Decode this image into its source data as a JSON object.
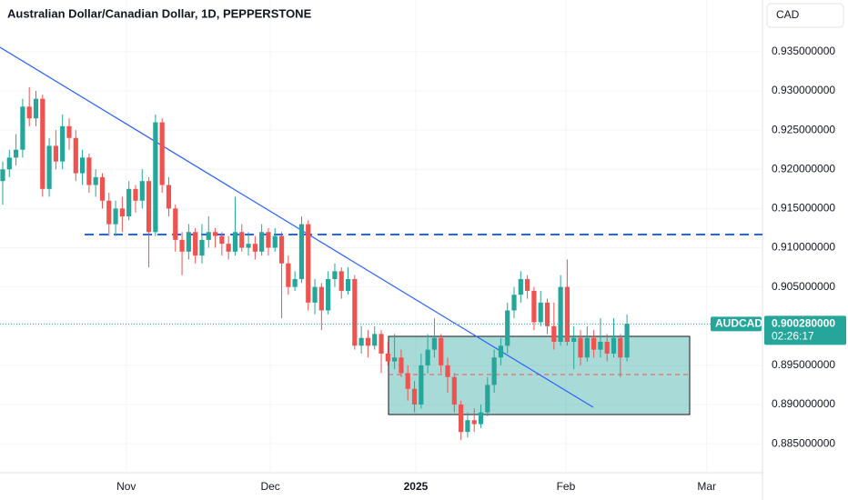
{
  "chart_data": {
    "type": "candlestick",
    "title": "Australian Dollar/Canadian Dollar, 1D, PEPPERSTONE",
    "currency": "CAD",
    "symbol": "AUDCAD",
    "last_price": {
      "value": 0.90028,
      "label": "0.900280000"
    },
    "countdown": "02:26:17",
    "up_color": "#26a69a",
    "down_color": "#ef5350",
    "xlim": [
      -0.41,
      114.4
    ],
    "ylim": [
      0.8813,
      0.9416
    ],
    "xticks": [
      {
        "value": 18.6,
        "label": "Nov"
      },
      {
        "value": 40.3,
        "label": "Dec"
      },
      {
        "value": 62.2,
        "label": "2025"
      },
      {
        "value": 84.8,
        "label": "Feb"
      },
      {
        "value": 106,
        "label": "Mar"
      }
    ],
    "yticks": [
      {
        "value": 0.885,
        "label": "0.885000000"
      },
      {
        "value": 0.89,
        "label": "0.890000000"
      },
      {
        "value": 0.895,
        "label": "0.895000000"
      },
      {
        "value": 0.905,
        "label": "0.905000000"
      },
      {
        "value": 0.91,
        "label": "0.910000000"
      },
      {
        "value": 0.915,
        "label": "0.915000000"
      },
      {
        "value": 0.92,
        "label": "0.920000000"
      },
      {
        "value": 0.925,
        "label": "0.925000000"
      },
      {
        "value": 0.93,
        "label": "0.930000000"
      },
      {
        "value": 0.935,
        "label": "0.935000000"
      }
    ],
    "open": [
      0.9185,
      0.92,
      0.9215,
      0.9225,
      0.928,
      0.9265,
      0.929,
      0.9175,
      0.923,
      0.921,
      0.9255,
      0.924,
      0.9195,
      0.9215,
      0.918,
      0.919,
      0.916,
      0.913,
      0.915,
      0.914,
      0.9175,
      0.916,
      0.9185,
      0.912,
      0.926,
      0.918,
      0.915,
      0.911,
      0.9095,
      0.912,
      0.909,
      0.911,
      0.912,
      0.9115,
      0.9105,
      0.9095,
      0.912,
      0.91,
      0.9105,
      0.9095,
      0.912,
      0.91,
      0.9115,
      0.908,
      0.905,
      0.906,
      0.913,
      0.903,
      0.905,
      0.902,
      0.906,
      0.907,
      0.9045,
      0.906,
      0.8975,
      0.8985,
      0.8975,
      0.899,
      0.8965,
      0.8955,
      0.896,
      0.894,
      0.892,
      0.89,
      0.895,
      0.897,
      0.8985,
      0.895,
      0.8935,
      0.89,
      0.8865,
      0.888,
      0.8875,
      0.889,
      0.8925,
      0.896,
      0.8975,
      0.902,
      0.904,
      0.906,
      0.9045,
      0.9005,
      0.903,
      0.9,
      0.898,
      0.905,
      0.898,
      0.8985,
      0.896,
      0.8985,
      0.897,
      0.898,
      0.8965,
      0.8985,
      0.896
    ],
    "high": [
      0.921,
      0.9225,
      0.9245,
      0.929,
      0.9305,
      0.93,
      0.9295,
      0.924,
      0.925,
      0.927,
      0.9265,
      0.925,
      0.9225,
      0.922,
      0.92,
      0.9195,
      0.917,
      0.916,
      0.9165,
      0.9185,
      0.918,
      0.92,
      0.919,
      0.927,
      0.9265,
      0.919,
      0.9155,
      0.912,
      0.913,
      0.9125,
      0.913,
      0.914,
      0.9125,
      0.912,
      0.9115,
      0.9165,
      0.913,
      0.912,
      0.9115,
      0.913,
      0.9125,
      0.9125,
      0.912,
      0.909,
      0.907,
      0.914,
      0.9135,
      0.906,
      0.9055,
      0.907,
      0.908,
      0.9075,
      0.9075,
      0.9065,
      0.9,
      0.8995,
      0.9,
      0.8995,
      0.898,
      0.899,
      0.897,
      0.895,
      0.893,
      0.8965,
      0.899,
      0.901,
      0.899,
      0.896,
      0.894,
      0.8905,
      0.889,
      0.8895,
      0.89,
      0.8935,
      0.897,
      0.8985,
      0.903,
      0.905,
      0.907,
      0.9065,
      0.905,
      0.9045,
      0.9035,
      0.903,
      0.9065,
      0.9085,
      0.9,
      0.8995,
      0.9,
      0.8995,
      0.901,
      0.899,
      0.901,
      0.899,
      0.9015
    ],
    "low": [
      0.9155,
      0.919,
      0.9205,
      0.9215,
      0.9255,
      0.9255,
      0.9165,
      0.9165,
      0.92,
      0.92,
      0.9225,
      0.9185,
      0.918,
      0.917,
      0.9165,
      0.915,
      0.9115,
      0.9115,
      0.912,
      0.9135,
      0.9145,
      0.915,
      0.9075,
      0.9115,
      0.917,
      0.914,
      0.9095,
      0.9065,
      0.9085,
      0.908,
      0.908,
      0.91,
      0.91,
      0.909,
      0.9085,
      0.909,
      0.9095,
      0.909,
      0.9085,
      0.909,
      0.909,
      0.9095,
      0.901,
      0.904,
      0.9045,
      0.9055,
      0.902,
      0.9015,
      0.8995,
      0.9015,
      0.905,
      0.9035,
      0.904,
      0.897,
      0.8965,
      0.896,
      0.897,
      0.894,
      0.895,
      0.8945,
      0.8935,
      0.8905,
      0.889,
      0.8895,
      0.894,
      0.896,
      0.894,
      0.8915,
      0.889,
      0.8855,
      0.8858,
      0.8865,
      0.887,
      0.8885,
      0.8915,
      0.895,
      0.8965,
      0.901,
      0.903,
      0.9035,
      0.8995,
      0.9,
      0.899,
      0.897,
      0.8975,
      0.8975,
      0.8945,
      0.895,
      0.8955,
      0.896,
      0.896,
      0.8955,
      0.896,
      0.8935,
      0.8955
    ],
    "close": [
      0.92,
      0.9215,
      0.9225,
      0.928,
      0.9265,
      0.929,
      0.9175,
      0.923,
      0.921,
      0.9255,
      0.924,
      0.9195,
      0.9215,
      0.918,
      0.919,
      0.916,
      0.913,
      0.915,
      0.914,
      0.9175,
      0.916,
      0.9185,
      0.912,
      0.926,
      0.918,
      0.915,
      0.911,
      0.9095,
      0.912,
      0.909,
      0.911,
      0.912,
      0.9115,
      0.9105,
      0.9095,
      0.912,
      0.91,
      0.9105,
      0.9095,
      0.912,
      0.91,
      0.9115,
      0.908,
      0.905,
      0.906,
      0.913,
      0.903,
      0.905,
      0.902,
      0.906,
      0.907,
      0.9045,
      0.906,
      0.8975,
      0.8985,
      0.8975,
      0.899,
      0.8965,
      0.8955,
      0.896,
      0.894,
      0.892,
      0.89,
      0.895,
      0.897,
      0.8985,
      0.895,
      0.8935,
      0.89,
      0.8865,
      0.888,
      0.8875,
      0.889,
      0.8925,
      0.896,
      0.8975,
      0.902,
      0.904,
      0.906,
      0.9045,
      0.9005,
      0.903,
      0.9,
      0.898,
      0.905,
      0.898,
      0.8985,
      0.896,
      0.8985,
      0.897,
      0.898,
      0.8965,
      0.8985,
      0.896,
      0.9003
    ]
  }
}
